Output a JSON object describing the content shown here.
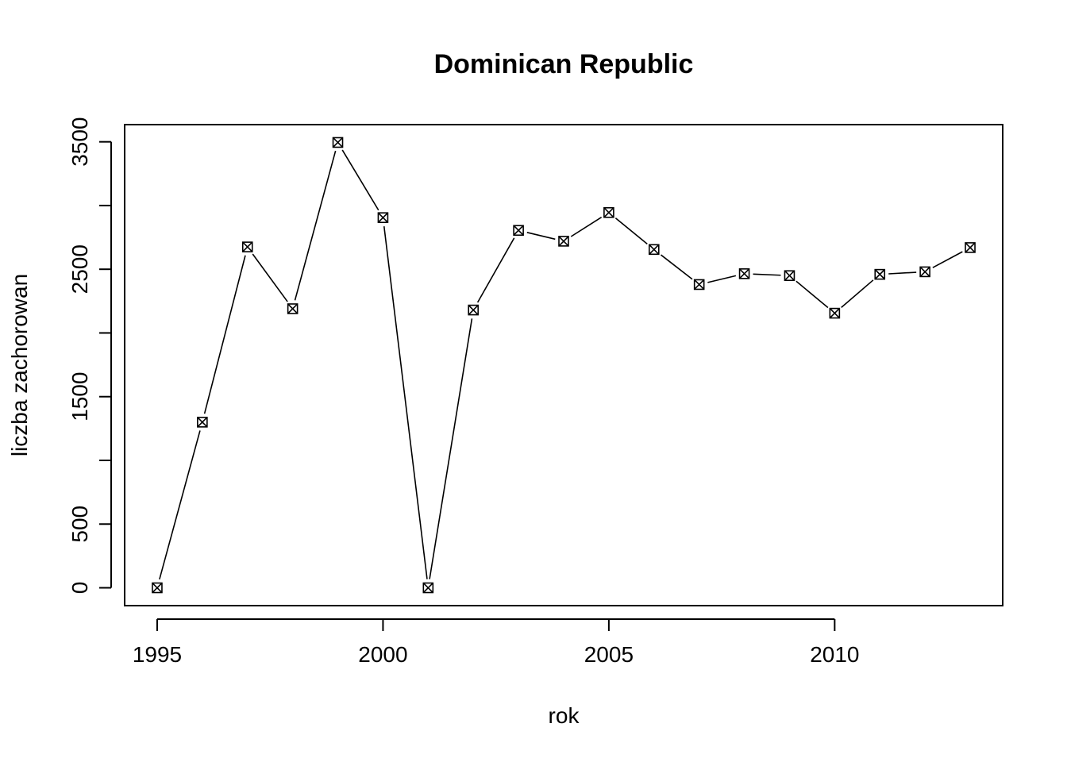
{
  "chart_data": {
    "type": "line",
    "title": "Dominican Republic",
    "xlabel": "rok",
    "ylabel": "liczba zachorowan",
    "x": [
      1995,
      1996,
      1997,
      1998,
      1999,
      2000,
      2001,
      2002,
      2003,
      2004,
      2005,
      2006,
      2007,
      2008,
      2009,
      2010,
      2011,
      2012,
      2013
    ],
    "series": [
      {
        "values": [
          0,
          1300,
          2675,
          2190,
          3495,
          2905,
          0,
          2180,
          2805,
          2720,
          2945,
          2655,
          2380,
          2465,
          2450,
          2155,
          2460,
          2480,
          2670
        ]
      }
    ],
    "xticks": [
      1995,
      2000,
      2005,
      2010
    ],
    "yticks": [
      0,
      500,
      1000,
      1500,
      2000,
      2500,
      3000,
      3500
    ],
    "ytick_labels": [
      "0",
      "500",
      "",
      "1500",
      "",
      "2500",
      "",
      "3500"
    ],
    "xlim": [
      1994.28,
      2013.72
    ],
    "ylim": [
      -140,
      3635
    ],
    "marker": "boxed-x",
    "grid": false,
    "legend": "none"
  }
}
